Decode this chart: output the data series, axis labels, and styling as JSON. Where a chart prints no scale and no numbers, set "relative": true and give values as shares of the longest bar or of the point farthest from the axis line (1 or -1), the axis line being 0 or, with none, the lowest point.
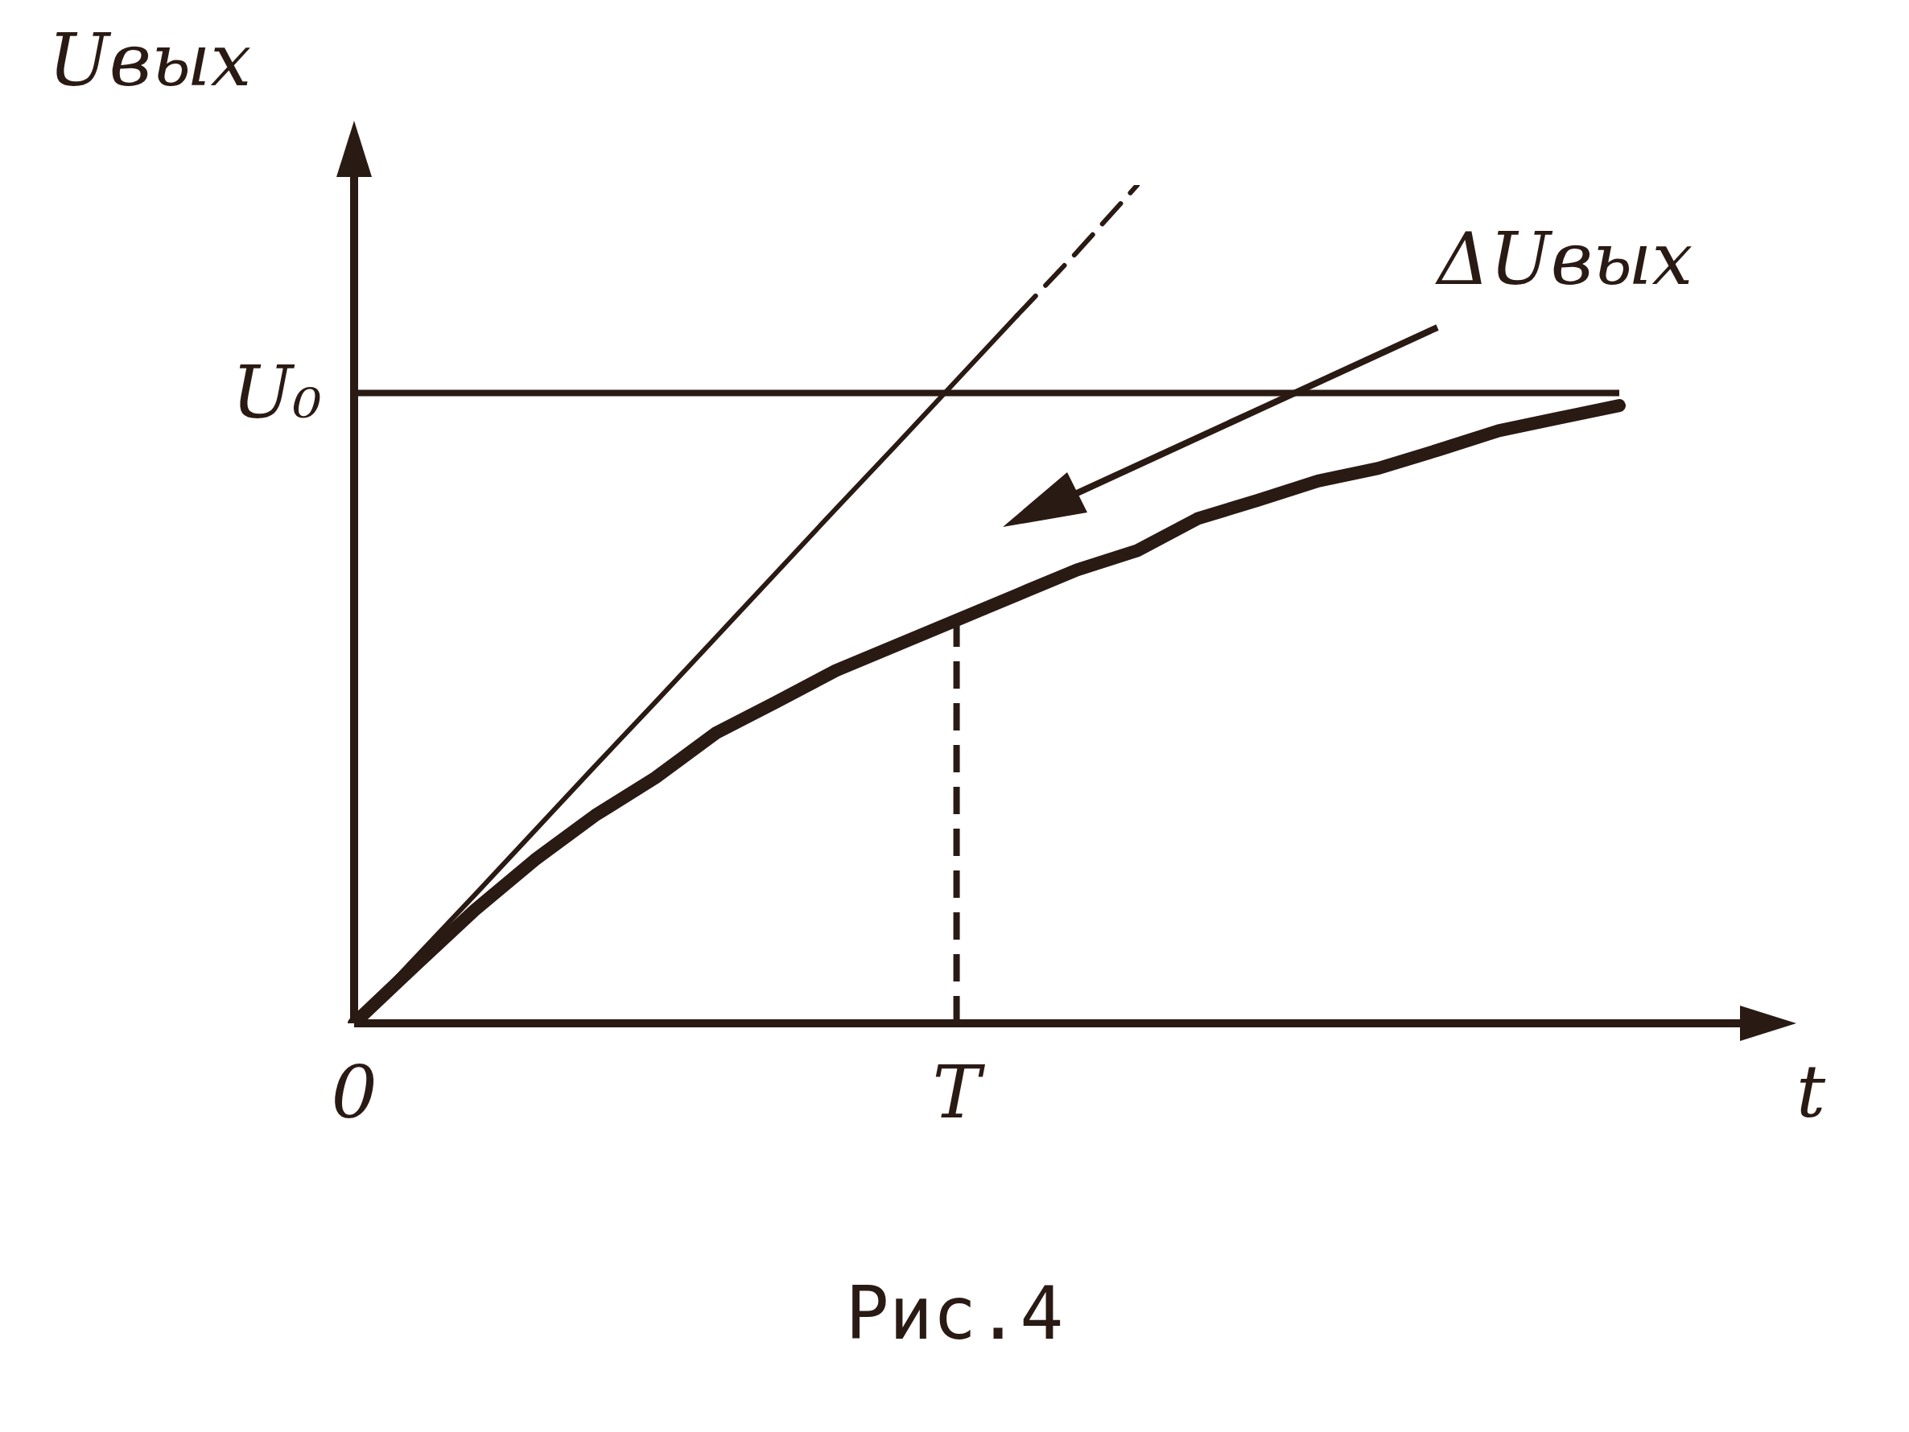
{
  "chart_data": {
    "type": "line",
    "xlabel": "t",
    "ylabel": "Uвых",
    "relative": true,
    "categories": [
      "0",
      null,
      null,
      null,
      null,
      null,
      null,
      null,
      null,
      null,
      "T",
      null,
      null,
      null,
      null,
      null,
      null,
      null,
      null,
      null,
      null,
      null
    ],
    "series": [
      {
        "color": "#2a1a14",
        "values": [
          0,
          0.068,
          0.135,
          0.195,
          0.248,
          0.293,
          0.346,
          0.383,
          0.421,
          0.451,
          0.481,
          0.511,
          0.541,
          0.564,
          0.602,
          0.624,
          0.647,
          0.662,
          0.684,
          0.707,
          0.722,
          0.737
        ]
      },
      {
        "color": "#2a1a14",
        "values": [
          0,
          0.077,
          0.153,
          0.23,
          0.307,
          0.383,
          0.46,
          0.537,
          0.614,
          0.69,
          0.767,
          0.844,
          null,
          null,
          null,
          null,
          null,
          null,
          null,
          null,
          null,
          null
        ]
      },
      {
        "color": "#2a1a14",
        "line_style": "dashed",
        "values": [
          null,
          null,
          null,
          null,
          null,
          null,
          null,
          null,
          null,
          null,
          null,
          0.844,
          0.92,
          1,
          null,
          null,
          null,
          null,
          null,
          null,
          null,
          null
        ]
      }
    ],
    "ref_lines": [
      {
        "axis": "y",
        "value": 0.752,
        "label": "U₀",
        "color": "#2a1a14"
      },
      {
        "axis": "x",
        "value": "T",
        "line_style": "dashed",
        "color": "#2a1a14"
      }
    ],
    "annotations": [
      "ΔUвых",
      "Рис.4"
    ],
    "legend": false,
    "marker": "none"
  }
}
